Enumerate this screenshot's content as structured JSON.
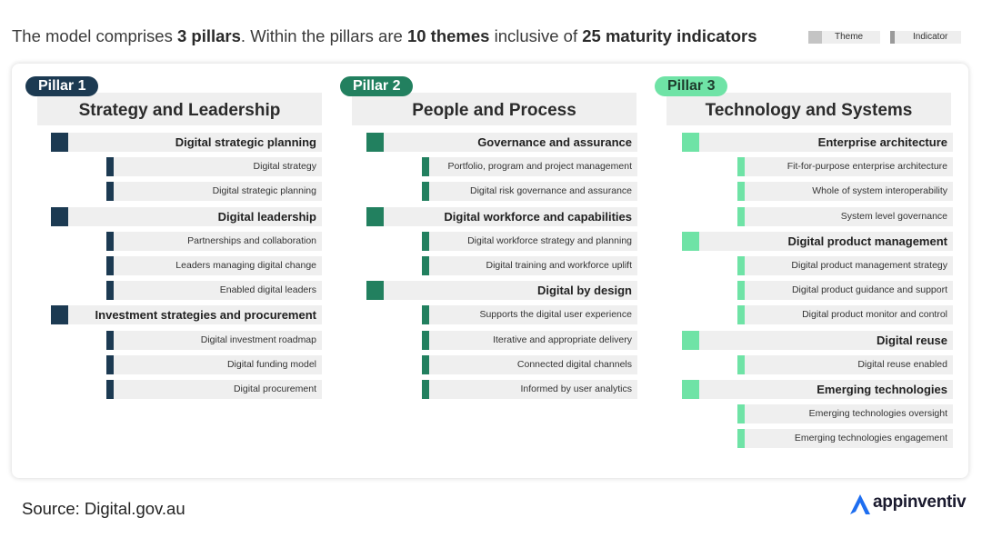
{
  "headline": {
    "t1": "The model comprises ",
    "b1": "3 pillars",
    "t2": ". Within the pillars are ",
    "b2": "10 themes",
    "t3": " inclusive of ",
    "b3": "25 maturity indicators"
  },
  "legend": {
    "theme": "Theme",
    "indicator": "Indicator"
  },
  "pillars": [
    {
      "badge": "Pillar 1",
      "title": "Strategy and Leadership",
      "color": "#1c3a52",
      "rows": [
        {
          "kind": "theme",
          "text": "Digital strategic planning"
        },
        {
          "kind": "ind",
          "text": "Digital strategy"
        },
        {
          "kind": "ind",
          "text": "Digital strategic planning"
        },
        {
          "kind": "theme",
          "text": "Digital leadership"
        },
        {
          "kind": "ind",
          "text": "Partnerships and collaboration"
        },
        {
          "kind": "ind",
          "text": "Leaders managing digital change"
        },
        {
          "kind": "ind",
          "text": "Enabled digital leaders"
        },
        {
          "kind": "theme",
          "text": "Investment strategies and procurement"
        },
        {
          "kind": "ind",
          "text": "Digital investment roadmap"
        },
        {
          "kind": "ind",
          "text": "Digital funding model"
        },
        {
          "kind": "ind",
          "text": "Digital procurement"
        }
      ]
    },
    {
      "badge": "Pillar 2",
      "title": "People and Process",
      "color": "#22805f",
      "rows": [
        {
          "kind": "theme",
          "text": "Governance and assurance"
        },
        {
          "kind": "ind",
          "text": "Portfolio, program and project management"
        },
        {
          "kind": "ind",
          "text": "Digital risk governance and assurance"
        },
        {
          "kind": "theme",
          "text": "Digital workforce and capabilities"
        },
        {
          "kind": "ind",
          "text": "Digital workforce strategy and planning"
        },
        {
          "kind": "ind",
          "text": "Digital training and workforce uplift"
        },
        {
          "kind": "theme",
          "text": "Digital by design"
        },
        {
          "kind": "ind",
          "text": "Supports the digital user experience"
        },
        {
          "kind": "ind",
          "text": "Iterative and appropriate delivery"
        },
        {
          "kind": "ind",
          "text": "Connected digital channels"
        },
        {
          "kind": "ind",
          "text": "Informed by user analytics"
        }
      ]
    },
    {
      "badge": "Pillar 3",
      "title": "Technology and Systems",
      "color": "#6fe3a6",
      "rows": [
        {
          "kind": "theme",
          "text": "Enterprise architecture"
        },
        {
          "kind": "ind",
          "text": "Fit-for-purpose enterprise architecture"
        },
        {
          "kind": "ind",
          "text": "Whole of system interoperability"
        },
        {
          "kind": "ind",
          "text": "System level governance"
        },
        {
          "kind": "theme",
          "text": "Digital product management"
        },
        {
          "kind": "ind",
          "text": "Digital product management strategy"
        },
        {
          "kind": "ind",
          "text": "Digital product guidance and support"
        },
        {
          "kind": "ind",
          "text": "Digital product monitor and control"
        },
        {
          "kind": "theme",
          "text": "Digital reuse"
        },
        {
          "kind": "ind",
          "text": "Digital reuse enabled"
        },
        {
          "kind": "theme",
          "text": "Emerging technologies"
        },
        {
          "kind": "ind",
          "text": "Emerging technologies oversight"
        },
        {
          "kind": "ind",
          "text": "Emerging technologies engagement"
        }
      ]
    }
  ],
  "source": "Source: Digital.gov.au",
  "brand": {
    "name": "appinventiv",
    "color": "#1e6ef0"
  }
}
